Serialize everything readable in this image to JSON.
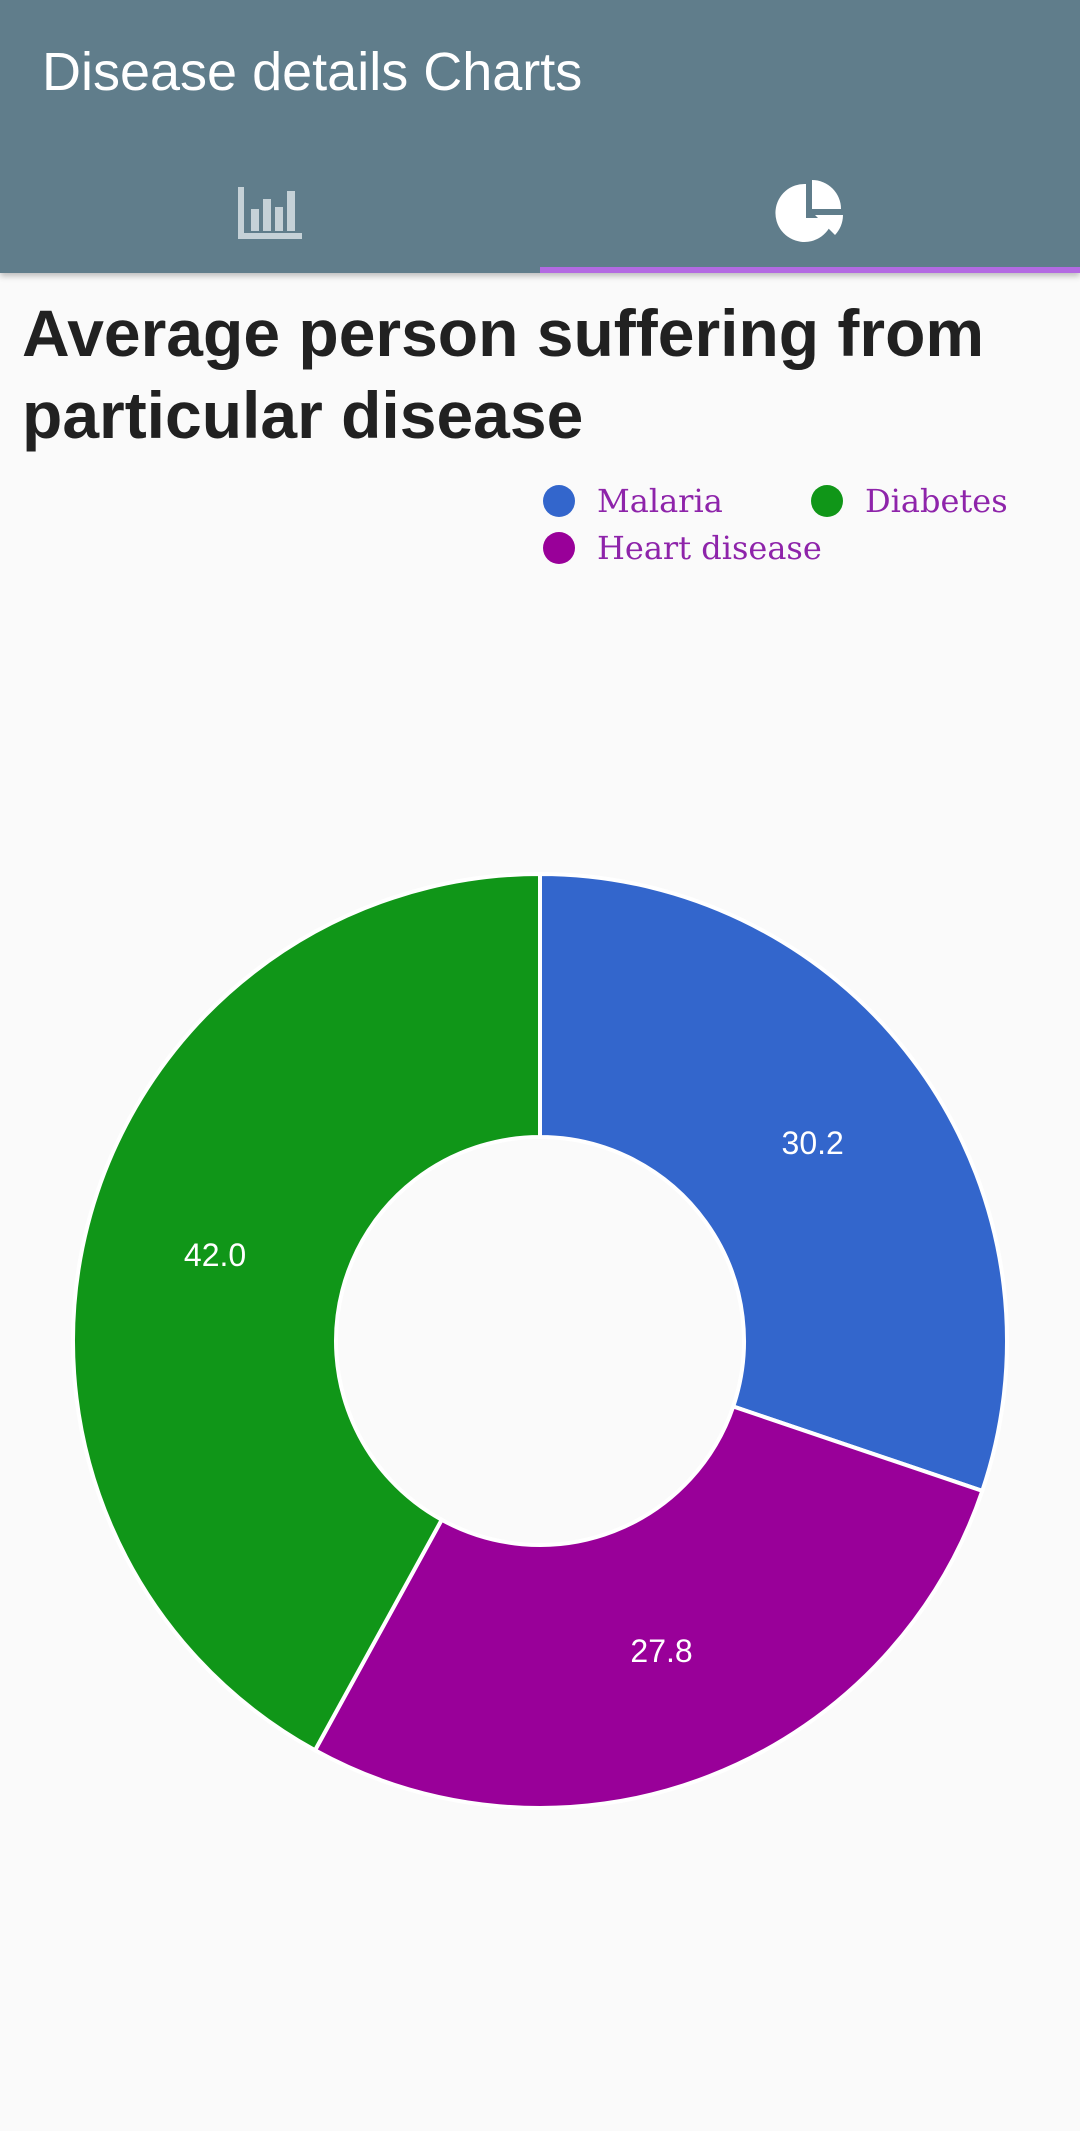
{
  "app": {
    "title": "Disease details Charts"
  },
  "tabs": [
    {
      "icon": "bar-chart-icon",
      "selected": false
    },
    {
      "icon": "pie-chart-icon",
      "selected": true
    }
  ],
  "colors": {
    "app_bar": "#607d8b",
    "tab_indicator": "#b36ae2",
    "legend_text": "#8e24aa"
  },
  "chart_data": {
    "type": "pie",
    "title": "Average person suffering from particular disease",
    "legend_position": "top-right",
    "series": [
      {
        "name": "Malaria",
        "value": 30.2,
        "label": "30.2",
        "color": "#3366cc"
      },
      {
        "name": "Diabetes",
        "value": 42.0,
        "label": "42.0",
        "color": "#109618"
      },
      {
        "name": "Heart disease",
        "value": 27.8,
        "label": "27.8",
        "color": "#990099"
      }
    ],
    "donut": true
  }
}
